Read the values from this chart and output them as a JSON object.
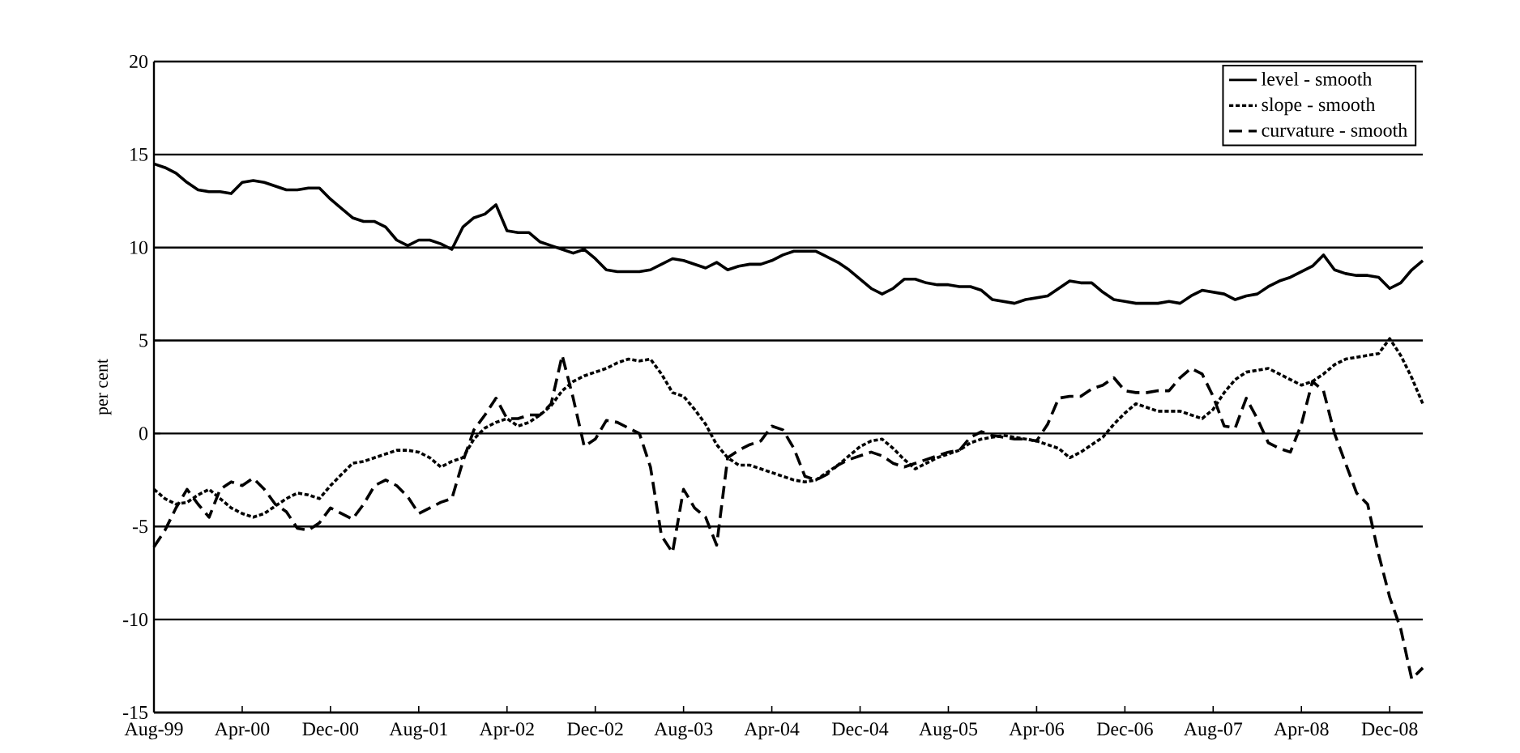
{
  "chart_data": {
    "type": "line",
    "ylabel": "per cent",
    "categories": [
      "Aug-99",
      null,
      null,
      null,
      null,
      null,
      null,
      null,
      "Apr-00",
      null,
      null,
      null,
      null,
      null,
      null,
      null,
      "Dec-00",
      null,
      null,
      null,
      null,
      null,
      null,
      null,
      "Aug-01",
      null,
      null,
      null,
      null,
      null,
      null,
      null,
      "Apr-02",
      null,
      null,
      null,
      null,
      null,
      null,
      null,
      "Dec-02",
      null,
      null,
      null,
      null,
      null,
      null,
      null,
      "Aug-03",
      null,
      null,
      null,
      null,
      null,
      null,
      null,
      "Apr-04",
      null,
      null,
      null,
      null,
      null,
      null,
      null,
      "Dec-04",
      null,
      null,
      null,
      null,
      null,
      null,
      null,
      "Aug-05",
      null,
      null,
      null,
      null,
      null,
      null,
      null,
      "Apr-06",
      null,
      null,
      null,
      null,
      null,
      null,
      null,
      "Dec-06",
      null,
      null,
      null,
      null,
      null,
      null,
      null,
      "Aug-07",
      null,
      null,
      null,
      null,
      null,
      null,
      null,
      "Apr-08",
      null,
      null,
      null,
      null,
      null,
      null,
      null,
      "Dec-08",
      null,
      null,
      null
    ],
    "series": [
      {
        "name": "level - smooth",
        "color": "#000000",
        "line_style": "solid",
        "values": [
          14.5,
          14.3,
          14.0,
          13.5,
          13.1,
          13.0,
          13.0,
          12.9,
          13.5,
          13.6,
          13.5,
          13.3,
          13.1,
          13.1,
          13.2,
          13.2,
          12.6,
          12.1,
          11.6,
          11.4,
          11.4,
          11.1,
          10.4,
          10.1,
          10.4,
          10.4,
          10.2,
          9.9,
          11.1,
          11.6,
          11.8,
          12.3,
          10.9,
          10.8,
          10.8,
          10.3,
          10.1,
          9.9,
          9.7,
          9.9,
          9.4,
          8.8,
          8.7,
          8.7,
          8.7,
          8.8,
          9.1,
          9.4,
          9.3,
          9.1,
          8.9,
          9.2,
          8.8,
          9.0,
          9.1,
          9.1,
          9.3,
          9.6,
          9.8,
          9.8,
          9.8,
          9.5,
          9.2,
          8.8,
          8.3,
          7.8,
          7.5,
          7.8,
          8.3,
          8.3,
          8.1,
          8.0,
          8.0,
          7.9,
          7.9,
          7.7,
          7.2,
          7.1,
          7.0,
          7.2,
          7.3,
          7.4,
          7.8,
          8.2,
          8.1,
          8.1,
          7.6,
          7.2,
          7.1,
          7.0,
          7.0,
          7.0,
          7.1,
          7.0,
          7.4,
          7.7,
          7.6,
          7.5,
          7.2,
          7.4,
          7.5,
          7.9,
          8.2,
          8.4,
          8.7,
          9.0,
          9.6,
          8.8,
          8.6,
          8.5,
          8.5,
          8.4,
          7.8,
          8.1,
          8.8,
          9.3
        ]
      },
      {
        "name": "slope - smooth",
        "color": "#000000",
        "line_style": "dotted",
        "values": [
          -3.0,
          -3.5,
          -3.8,
          -3.7,
          -3.3,
          -3.0,
          -3.5,
          -4.0,
          -4.3,
          -4.5,
          -4.3,
          -3.9,
          -3.5,
          -3.2,
          -3.3,
          -3.5,
          -2.8,
          -2.2,
          -1.6,
          -1.5,
          -1.3,
          -1.1,
          -0.9,
          -0.9,
          -1.0,
          -1.3,
          -1.8,
          -1.5,
          -1.3,
          -0.3,
          0.3,
          0.6,
          0.8,
          0.4,
          0.6,
          1.0,
          1.5,
          2.3,
          2.8,
          3.1,
          3.3,
          3.5,
          3.8,
          4.0,
          3.9,
          4.0,
          3.2,
          2.2,
          2.0,
          1.3,
          0.5,
          -0.6,
          -1.3,
          -1.7,
          -1.7,
          -1.9,
          -2.1,
          -2.3,
          -2.5,
          -2.6,
          -2.5,
          -2.1,
          -1.7,
          -1.2,
          -0.7,
          -0.4,
          -0.3,
          -0.8,
          -1.4,
          -1.9,
          -1.6,
          -1.3,
          -1.1,
          -0.9,
          -0.5,
          -0.3,
          -0.2,
          -0.1,
          -0.2,
          -0.3,
          -0.4,
          -0.6,
          -0.8,
          -1.3,
          -1.0,
          -0.6,
          -0.2,
          0.5,
          1.1,
          1.6,
          1.4,
          1.2,
          1.2,
          1.2,
          1.0,
          0.8,
          1.3,
          2.2,
          2.9,
          3.3,
          3.4,
          3.5,
          3.2,
          2.9,
          2.6,
          2.8,
          3.2,
          3.7,
          4.0,
          4.1,
          4.2,
          4.3,
          5.1,
          4.2,
          3.0,
          1.6
        ]
      },
      {
        "name": "curvature - smooth",
        "color": "#000000",
        "line_style": "dashed",
        "values": [
          -6.1,
          -5.2,
          -4.0,
          -3.0,
          -3.8,
          -4.5,
          -3.0,
          -2.6,
          -2.8,
          -2.4,
          -3.0,
          -3.8,
          -4.2,
          -5.1,
          -5.2,
          -4.8,
          -4.0,
          -4.3,
          -4.6,
          -3.8,
          -2.8,
          -2.5,
          -2.8,
          -3.4,
          -4.3,
          -4.0,
          -3.7,
          -3.5,
          -1.5,
          0.2,
          1.0,
          1.9,
          0.8,
          0.8,
          1.0,
          1.0,
          1.6,
          4.2,
          1.9,
          -0.7,
          -0.3,
          0.7,
          0.6,
          0.3,
          0.0,
          -1.8,
          -5.5,
          -6.4,
          -3.0,
          -4.0,
          -4.5,
          -6.0,
          -1.3,
          -0.9,
          -0.6,
          -0.4,
          0.4,
          0.2,
          -0.8,
          -2.3,
          -2.5,
          -2.2,
          -1.7,
          -1.4,
          -1.2,
          -1.0,
          -1.2,
          -1.6,
          -1.8,
          -1.6,
          -1.4,
          -1.2,
          -1.0,
          -0.9,
          -0.2,
          0.1,
          -0.1,
          -0.2,
          -0.3,
          -0.3,
          -0.4,
          0.5,
          1.9,
          2.0,
          2.0,
          2.4,
          2.6,
          3.0,
          2.3,
          2.2,
          2.2,
          2.3,
          2.3,
          3.0,
          3.5,
          3.2,
          2.0,
          0.4,
          0.3,
          1.9,
          0.8,
          -0.5,
          -0.8,
          -1.0,
          0.5,
          2.8,
          2.3,
          0.0,
          -1.6,
          -3.2,
          -3.8,
          -6.5,
          -8.8,
          -10.5,
          -13.2,
          -12.6
        ]
      }
    ],
    "ylim": [
      -15,
      20
    ],
    "yticks": [
      -15,
      -10,
      -5,
      0,
      5,
      10,
      15,
      20
    ],
    "grid": "y",
    "legend": "top right",
    "marker": "none"
  }
}
